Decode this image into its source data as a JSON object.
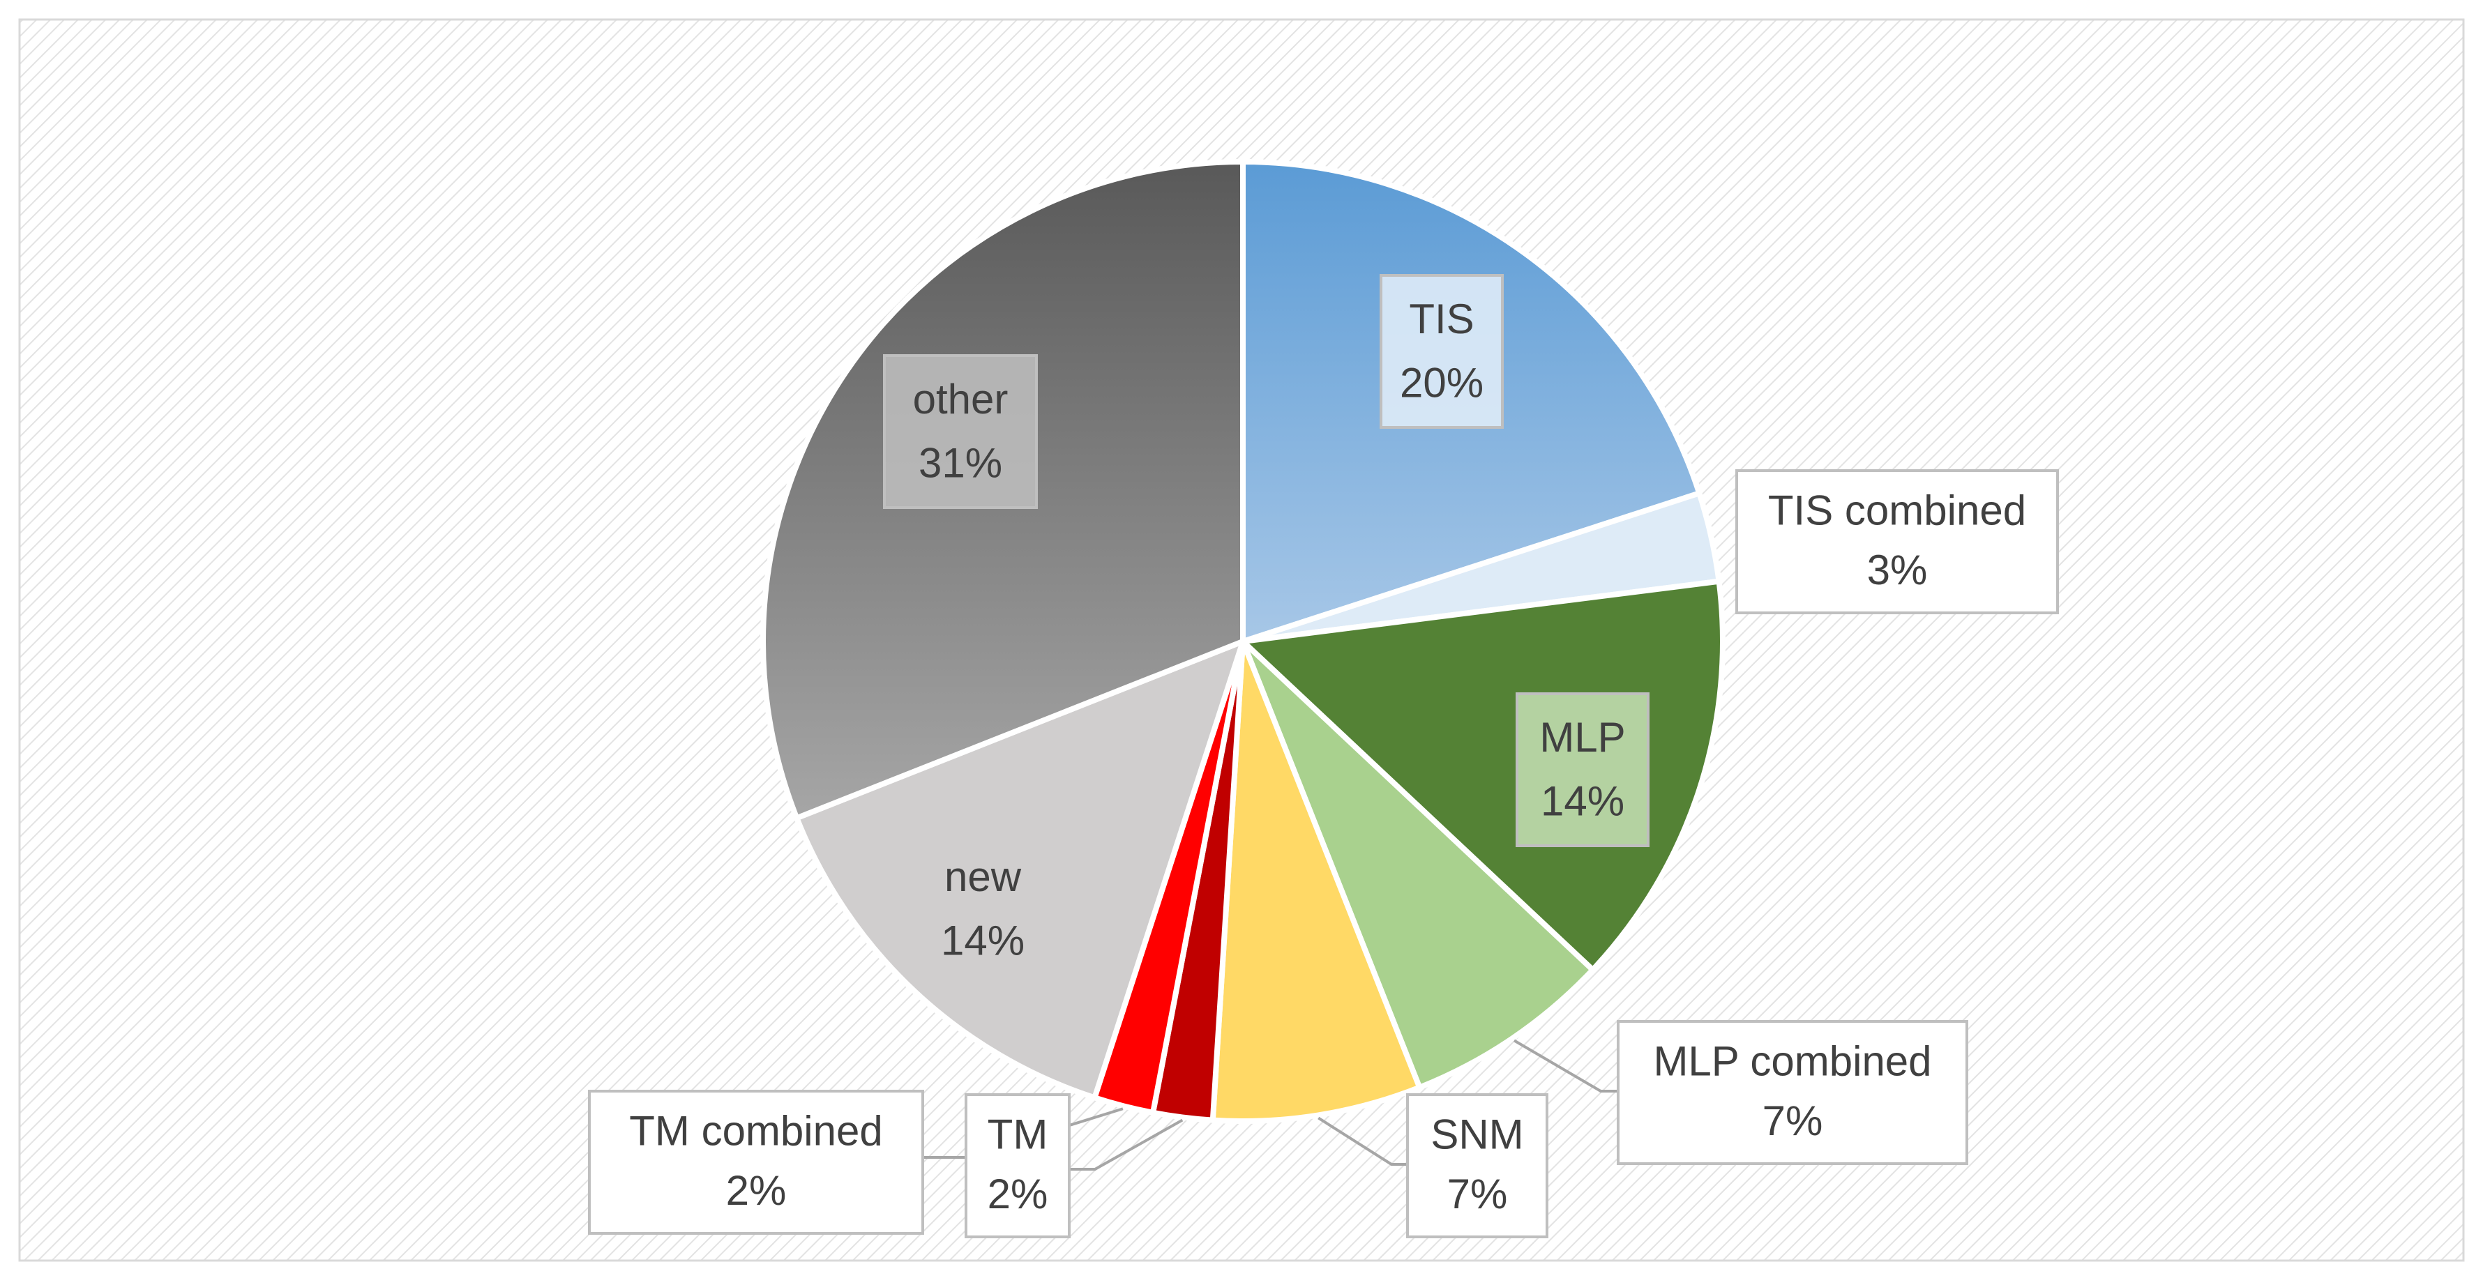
{
  "chart_data": {
    "type": "pie",
    "title": "",
    "start_angle_deg": 0,
    "direction": "clockwise",
    "slices": [
      {
        "name": "TIS",
        "value": 20,
        "label": "20%",
        "color": "#5b9bd5",
        "color_light": "#a7c7e7"
      },
      {
        "name": "TIS combined",
        "value": 3,
        "label": "3%",
        "color": "#deebf7"
      },
      {
        "name": "MLP",
        "value": 14,
        "label": "14%",
        "color": "#548235"
      },
      {
        "name": "MLP combined",
        "value": 7,
        "label": "7%",
        "color": "#a9d18e"
      },
      {
        "name": "SNM",
        "value": 7,
        "label": "7%",
        "color": "#ffd966"
      },
      {
        "name": "TM",
        "value": 2,
        "label": "2%",
        "color": "#c00000"
      },
      {
        "name": "TM combined",
        "value": 2,
        "label": "2%",
        "color": "#ff0000"
      },
      {
        "name": "new",
        "value": 14,
        "label": "14%",
        "color": "#d0cece"
      },
      {
        "name": "other",
        "value": 31,
        "label": "31%",
        "color": "#595959",
        "color_light": "#a6a6a6"
      }
    ],
    "legend": "none",
    "data_labels": "category and percentage"
  }
}
